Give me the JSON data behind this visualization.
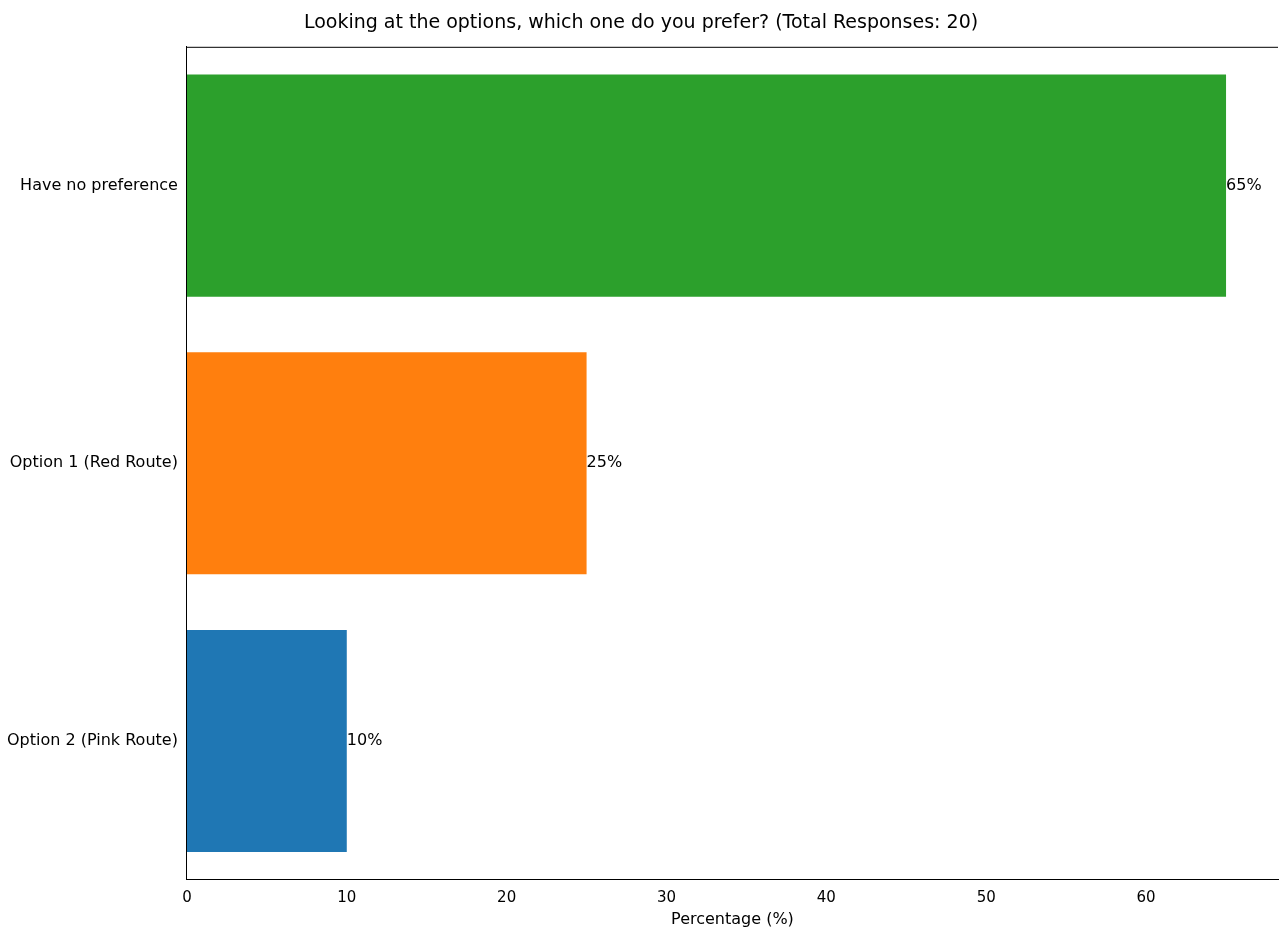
{
  "chart_data": {
    "type": "bar",
    "orientation": "horizontal",
    "title": "Looking at the options, which one do you prefer? (Total Responses: 20)",
    "xlabel": "Percentage (%)",
    "categories": [
      "Have no preference",
      "Option 1 (Red Route)",
      "Option 2 (Pink Route)"
    ],
    "values": [
      65,
      25,
      10
    ],
    "colors": [
      "#2ca02c",
      "#ff7f0e",
      "#1f77b4"
    ],
    "value_labels": [
      "65%",
      "25%",
      "10%"
    ],
    "xlim": [
      0,
      68.25
    ],
    "xticks": [
      0,
      10,
      20,
      30,
      40,
      50,
      60
    ],
    "grid": false,
    "legend": false
  }
}
